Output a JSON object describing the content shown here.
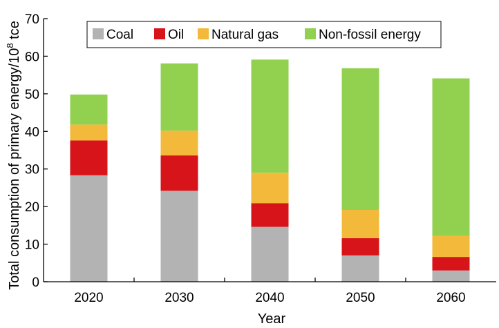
{
  "chart_data": {
    "type": "bar",
    "stacked": true,
    "categories": [
      "2020",
      "2030",
      "2040",
      "2050",
      "2060"
    ],
    "series": [
      {
        "name": "Coal",
        "color": "#b3b3b3",
        "values": [
          28.3,
          24.2,
          14.6,
          7.0,
          3.0
        ]
      },
      {
        "name": "Oil",
        "color": "#d7141a",
        "values": [
          9.3,
          9.4,
          6.3,
          4.6,
          3.6
        ]
      },
      {
        "name": "Natural gas",
        "color": "#f2b93b",
        "values": [
          4.2,
          6.6,
          8.1,
          7.5,
          5.6
        ]
      },
      {
        "name": "Non-fossil energy",
        "color": "#92d050",
        "values": [
          8.0,
          17.9,
          30.1,
          37.7,
          41.9
        ]
      }
    ],
    "xlabel": "Year",
    "ylabel": {
      "prefix": "Total consumption of primary energy/10",
      "sup": "8",
      "suffix": " tce"
    },
    "ylim": [
      0,
      70
    ],
    "yticks": [
      "0",
      "10",
      "20",
      "30",
      "40",
      "50",
      "60",
      "70"
    ],
    "grid": false,
    "legend": {
      "position": "top",
      "columns": 4
    }
  }
}
